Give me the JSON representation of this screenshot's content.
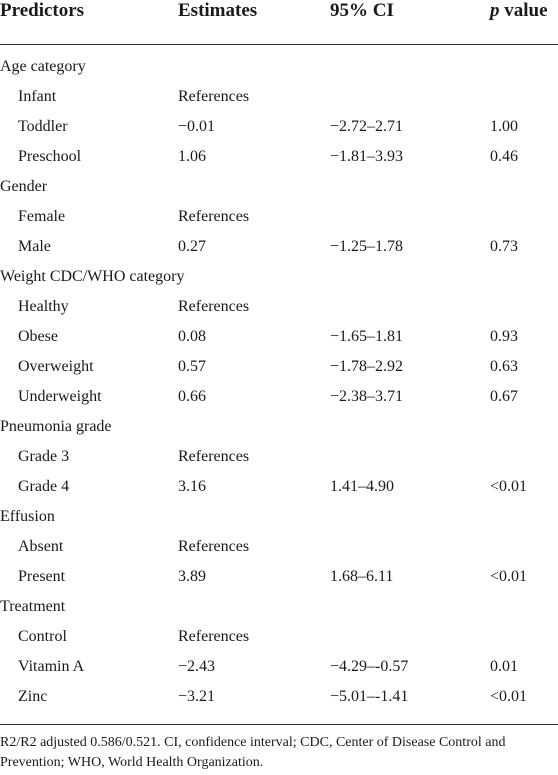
{
  "header": {
    "predictors": "Predictors",
    "estimates": "Estimates",
    "ci": "95% CI",
    "p_letter": "p",
    "p_word": " value"
  },
  "rows": [
    {
      "label": "Age category",
      "estimate": "",
      "ci": "",
      "p": ""
    },
    {
      "label": "Infant",
      "estimate": "References",
      "ci": "",
      "p": ""
    },
    {
      "label": "Toddler",
      "estimate": "−0.01",
      "ci": "−2.72–2.71",
      "p": "1.00"
    },
    {
      "label": "Preschool",
      "estimate": "1.06",
      "ci": "−1.81–3.93",
      "p": "0.46"
    },
    {
      "label": "Gender",
      "estimate": "",
      "ci": "",
      "p": ""
    },
    {
      "label": "Female",
      "estimate": "References",
      "ci": "",
      "p": ""
    },
    {
      "label": "Male",
      "estimate": "0.27",
      "ci": "−1.25–1.78",
      "p": "0.73"
    },
    {
      "label": "Weight CDC/WHO category",
      "estimate": "",
      "ci": "",
      "p": ""
    },
    {
      "label": "Healthy",
      "estimate": "References",
      "ci": "",
      "p": ""
    },
    {
      "label": "Obese",
      "estimate": "0.08",
      "ci": "−1.65–1.81",
      "p": "0.93"
    },
    {
      "label": "Overweight",
      "estimate": "0.57",
      "ci": "−1.78–2.92",
      "p": "0.63"
    },
    {
      "label": "Underweight",
      "estimate": "0.66",
      "ci": "−2.38–3.71",
      "p": "0.67"
    },
    {
      "label": "Pneumonia grade",
      "estimate": "",
      "ci": "",
      "p": ""
    },
    {
      "label": "Grade 3",
      "estimate": "References",
      "ci": "",
      "p": ""
    },
    {
      "label": "Grade 4",
      "estimate": "3.16",
      "ci": "1.41–4.90",
      "p": "<0.01"
    },
    {
      "label": "Effusion",
      "estimate": "",
      "ci": "",
      "p": ""
    },
    {
      "label": "Absent",
      "estimate": "References",
      "ci": "",
      "p": ""
    },
    {
      "label": "Present",
      "estimate": "3.89",
      "ci": "1.68–6.11",
      "p": "<0.01"
    },
    {
      "label": "Treatment",
      "estimate": "",
      "ci": "",
      "p": ""
    },
    {
      "label": "Control",
      "estimate": "References",
      "ci": "",
      "p": ""
    },
    {
      "label": "Vitamin A",
      "estimate": "−2.43",
      "ci": "−4.29–-0.57",
      "p": "0.01"
    },
    {
      "label": "Zinc",
      "estimate": "−3.21",
      "ci": "−5.01–-1.41",
      "p": "<0.01"
    }
  ],
  "footnote": "R2/R2 adjusted 0.586/0.521. CI, confidence interval; CDC, Center of Disease Control and Prevention; WHO, World Health Organization."
}
